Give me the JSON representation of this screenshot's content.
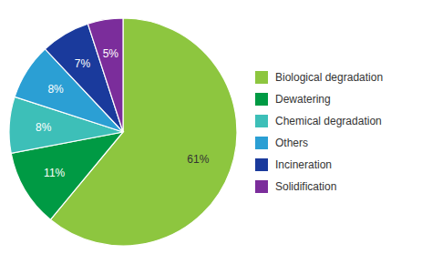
{
  "chart_data": {
    "type": "pie",
    "categories": [
      "Biological degradation",
      "Dewatering",
      "Chemical degradation",
      "Others",
      "Incineration",
      "Solidification"
    ],
    "values": [
      61,
      11,
      8,
      8,
      7,
      5
    ],
    "value_labels": [
      "61%",
      "11%",
      "8%",
      "8%",
      "7%",
      "5%"
    ],
    "colors": [
      "#8dc63f",
      "#009a44",
      "#3dbfb8",
      "#2b9fd4",
      "#1a3a9c",
      "#7b2d9b"
    ],
    "data_labels": true,
    "legend": "right"
  }
}
